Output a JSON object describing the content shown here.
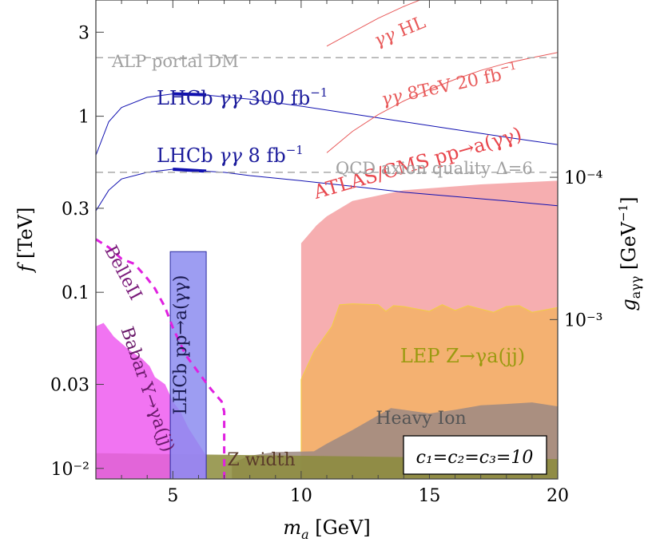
{
  "chart_data": {
    "type": "area",
    "xlabel": "m_a [GeV]",
    "ylabel": "f [TeV]",
    "y2label": "g_aγγ [GeV^-1]",
    "xlim": [
      2,
      20
    ],
    "ylim_log10": [
      -2.06,
      0.66
    ],
    "yscale": "log",
    "x_ticks": [
      {
        "value": 5,
        "label": "5"
      },
      {
        "value": 10,
        "label": "10"
      },
      {
        "value": 15,
        "label": "15"
      },
      {
        "value": 20,
        "label": "20"
      }
    ],
    "y_ticks": [
      {
        "value": 0.01,
        "label": "10⁻²"
      },
      {
        "value": 0.03,
        "label": "0.03"
      },
      {
        "value": 0.1,
        "label": "0.1"
      },
      {
        "value": 0.3,
        "label": "0.3"
      },
      {
        "value": 1,
        "label": "1"
      },
      {
        "value": 3,
        "label": "3"
      }
    ],
    "y2_ticks": [
      {
        "f": 0.45,
        "label": "10⁻⁴"
      },
      {
        "f": 0.07,
        "label": "10⁻³"
      }
    ],
    "regions": [
      {
        "name": "ATLAS/CMS pp→a(γγ)",
        "color": "#f4a0a2",
        "x": [
          10,
          10.6,
          11,
          12,
          14,
          17,
          20,
          20,
          10
        ],
        "f": [
          0.19,
          0.24,
          0.27,
          0.33,
          0.38,
          0.41,
          0.43,
          0.0087,
          0.0087
        ]
      },
      {
        "name": "LEP Z→γa(jj)",
        "color": "#f3b266",
        "x": [
          10,
          10.5,
          11.2,
          11.5,
          12,
          13,
          13.3,
          13.6,
          14,
          15,
          15.5,
          16,
          16.5,
          17.5,
          18,
          18.5,
          19,
          20,
          20,
          10
        ],
        "f": [
          0.032,
          0.046,
          0.064,
          0.085,
          0.086,
          0.085,
          0.078,
          0.084,
          0.083,
          0.078,
          0.085,
          0.079,
          0.084,
          0.077,
          0.083,
          0.084,
          0.077,
          0.082,
          0.0087,
          0.0087
        ]
      },
      {
        "name": "Heavy Ion",
        "color": "#9c8a82",
        "x": [
          7.3,
          8,
          9,
          10.5,
          11,
          12,
          13,
          13.5,
          14,
          15,
          16,
          17,
          18,
          19,
          20,
          20,
          7.3
        ],
        "f": [
          0.0107,
          0.0118,
          0.0124,
          0.0125,
          0.0138,
          0.0165,
          0.02,
          0.022,
          0.0215,
          0.0205,
          0.0215,
          0.0228,
          0.0232,
          0.0237,
          0.0225,
          0.0087,
          0.0087
        ]
      },
      {
        "name": "Z width",
        "color": "#8c8c3c",
        "x": [
          2,
          20,
          20,
          2
        ],
        "f": [
          0.0122,
          0.0113,
          0.0087,
          0.0087
        ]
      },
      {
        "name": "Babar Υ→γa(jj)",
        "color": "#ee5cf0",
        "x": [
          2,
          2.3,
          2.7,
          3.3,
          3.8,
          4.1,
          4.3,
          4.7,
          5,
          5.3,
          5.6,
          6.3,
          6.3,
          2
        ],
        "f": [
          0.064,
          0.067,
          0.056,
          0.047,
          0.042,
          0.038,
          0.033,
          0.03,
          0.024,
          0.021,
          0.017,
          0.0118,
          0.0087,
          0.0087
        ]
      },
      {
        "name": "LHCb pp→a(γγ)",
        "color": "#8c8cf0",
        "x": [
          4.9,
          4.9,
          6.3,
          6.3
        ],
        "f": [
          0.0087,
          0.17,
          0.17,
          0.0087
        ]
      }
    ],
    "lines": [
      {
        "name": "LHCb γγ 300 fb⁻¹",
        "color": "#1010b0",
        "x": [
          2,
          2.5,
          3,
          4,
          5,
          6,
          7,
          8,
          10,
          12,
          14,
          16,
          18,
          20
        ],
        "f": [
          0.6,
          0.93,
          1.12,
          1.28,
          1.34,
          1.33,
          1.29,
          1.25,
          1.14,
          1.03,
          0.93,
          0.84,
          0.76,
          0.69
        ]
      },
      {
        "name": "LHCb γγ 8 fb⁻¹",
        "color": "#1010b0",
        "x": [
          2,
          2.5,
          3,
          4,
          5,
          6,
          7,
          8,
          10,
          12,
          14,
          16,
          18,
          20
        ],
        "f": [
          0.29,
          0.38,
          0.44,
          0.48,
          0.5,
          0.49,
          0.48,
          0.46,
          0.43,
          0.4,
          0.37,
          0.35,
          0.33,
          0.31
        ]
      },
      {
        "name": "γγ 8TeV 20 fb⁻¹",
        "color": "#e85a5a",
        "x": [
          11,
          12,
          13,
          14,
          15,
          16,
          17,
          18,
          19,
          20
        ],
        "f": [
          0.62,
          0.82,
          1.02,
          1.22,
          1.42,
          1.62,
          1.82,
          2.0,
          2.15,
          2.3
        ]
      },
      {
        "name": "γγ HL",
        "color": "#e85a5a",
        "x": [
          11,
          12,
          13,
          14,
          15,
          15.8
        ],
        "f": [
          2.5,
          3.0,
          3.6,
          4.2,
          4.8,
          5.4
        ]
      }
    ],
    "dashed": [
      {
        "name": "ALP portal DM",
        "color": "#aaaaaa",
        "f": 2.15
      },
      {
        "name": "QCD axion quality Δ=6",
        "color": "#aaaaaa",
        "f": 0.48
      },
      {
        "name": "BelleII",
        "color": "#e020e0",
        "x": [
          2,
          2.5,
          3,
          3.5,
          4,
          4.3,
          4.7,
          5,
          5.5,
          6,
          6.5,
          6.9,
          7,
          7
        ],
        "f": [
          0.2,
          0.18,
          0.155,
          0.145,
          0.12,
          0.105,
          0.082,
          0.063,
          0.044,
          0.035,
          0.028,
          0.024,
          0.021,
          0.0087
        ]
      }
    ],
    "labels": {
      "atlas": "ATLAS/CMS pp→a(γγ)",
      "lep": "LEP Z→γa(jj)",
      "heavy_ion": "Heavy Ion",
      "z_width": "Z width",
      "babar": "Babar Υ→γa(jj)",
      "lhcb_box": "LHCb pp→a(γγ)",
      "belle": "BelleII",
      "lhcb300_pre": "LHCb ",
      "lhcb300_sym": "γγ",
      "lhcb300_post": " 300 fb",
      "lhcb8_pre": "LHCb ",
      "lhcb8_sym": "γγ",
      "lhcb8_post": " 8 fb",
      "exp": "−1",
      "gg8_sym": "γγ",
      "gg8_post": " 8TeV 20 fb",
      "ggHL_sym": "γγ",
      "ggHL_post": " HL",
      "alp": "ALP portal DM",
      "qcd": "QCD axion quality Δ=6",
      "couplings": "c₁=c₂=c₃=10"
    },
    "axis_text": {
      "x_main": "m",
      "x_sub": "a",
      "x_unit": " [GeV]",
      "y_main": "f",
      "y_unit": " [TeV]",
      "y2_main": "g",
      "y2_sub": "aγγ",
      "y2_unit": " [GeV",
      "y2_exp": "−1",
      "y2_close": "]"
    }
  }
}
